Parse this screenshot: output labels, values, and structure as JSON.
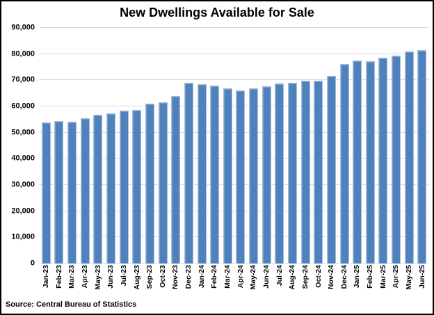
{
  "chart_data": {
    "type": "bar",
    "title": "New Dwellings Available for Sale",
    "source": "Source: Central Bureau of Statistics",
    "categories": [
      "Jan-23",
      "Feb-23",
      "Mar-23",
      "Apr-23",
      "May-23",
      "Jun-23",
      "Jul-23",
      "Aug-23",
      "Sep-23",
      "Oct-23",
      "Nov-23",
      "Dec-23",
      "Jan-24",
      "Feb-24",
      "Mar-24",
      "Apr-24",
      "May-24",
      "Jun-24",
      "Jul-24",
      "Aug-24",
      "Sep-24",
      "Oct-24",
      "Nov-24",
      "Dec-24",
      "Jan-25",
      "Feb-25",
      "Mar-25",
      "Apr-25",
      "May-25",
      "Jun-25"
    ],
    "values": [
      54000,
      54500,
      54100,
      55600,
      56900,
      57300,
      58400,
      58800,
      61100,
      61700,
      64100,
      69000,
      68500,
      68000,
      66900,
      66000,
      66900,
      67600,
      68700,
      68900,
      69800,
      69900,
      71700,
      76300,
      77600,
      77300,
      78500,
      79300,
      81000,
      81400
    ],
    "xlabel": "",
    "ylabel": "",
    "ylim": [
      0,
      90000
    ],
    "ytick_interval": 10000,
    "ytick_labels": [
      "0",
      "10,000",
      "20,000",
      "30,000",
      "40,000",
      "50,000",
      "60,000",
      "70,000",
      "80,000",
      "90,000"
    ],
    "grid": true,
    "legend": false,
    "bar_color": "#4F81BD",
    "gridline_color": "#D9D9D9",
    "background_color": "#FFFFFF",
    "border_color": "#000000"
  }
}
